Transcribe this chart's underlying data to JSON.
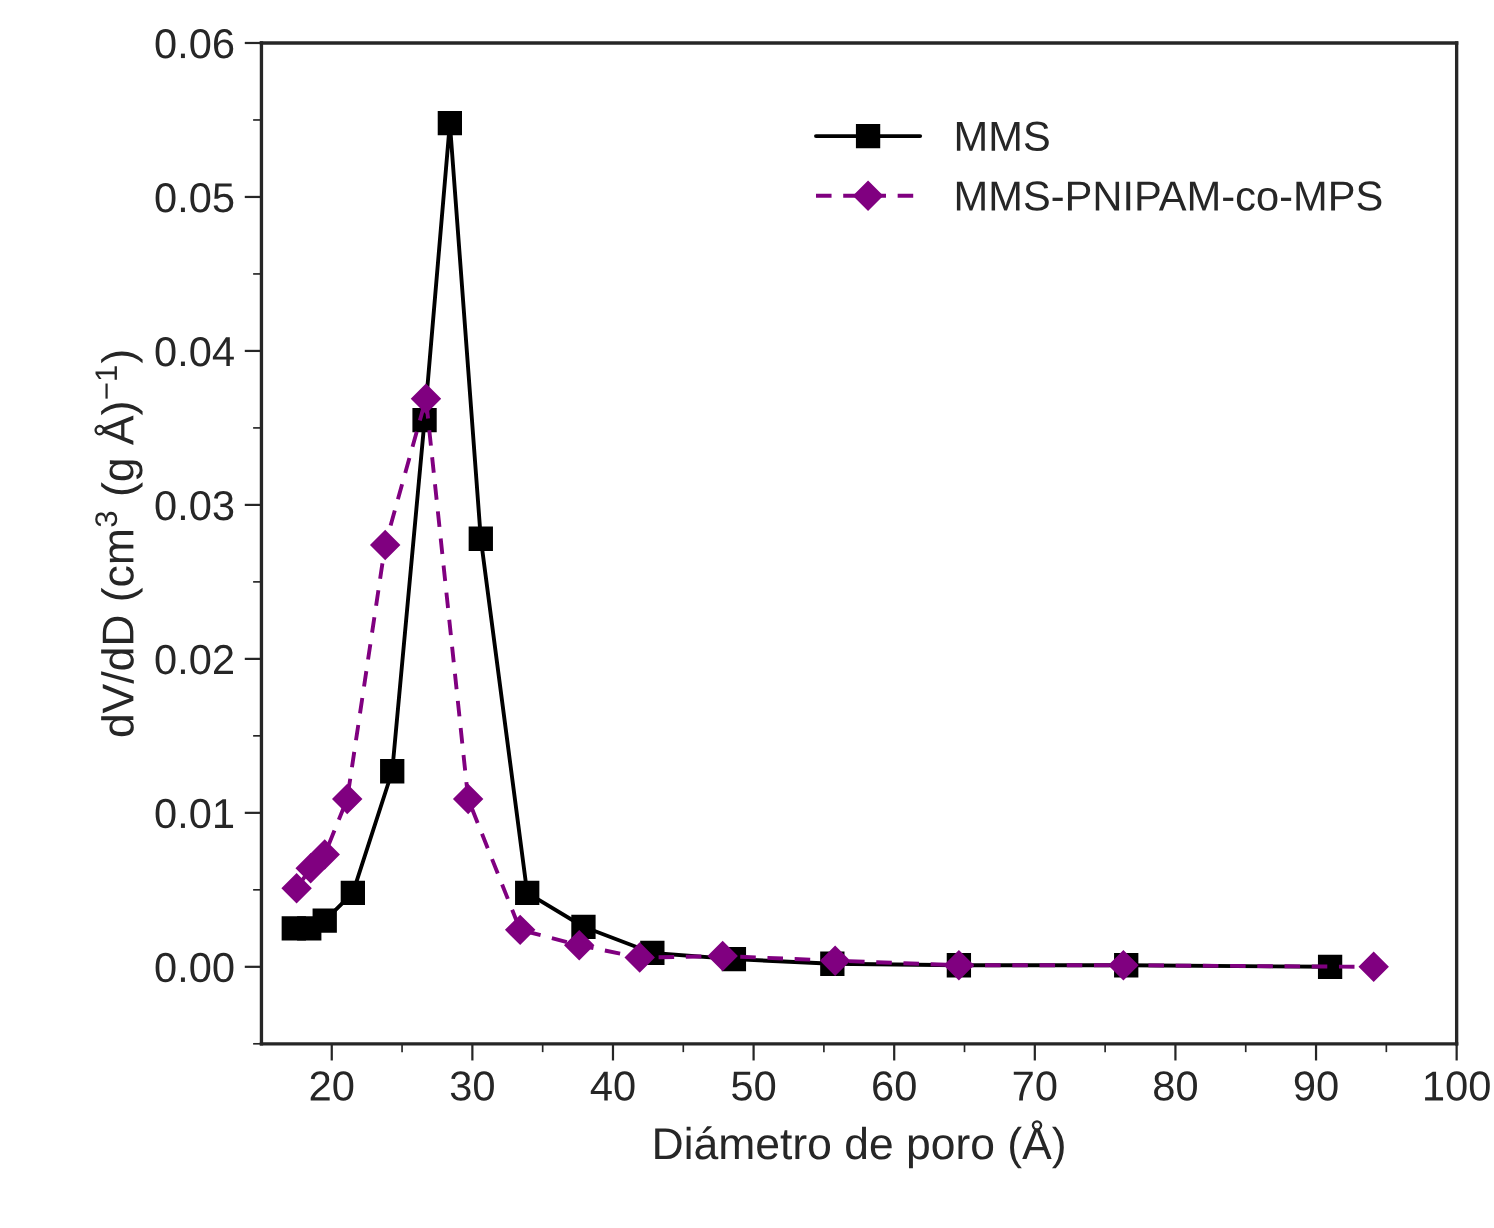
{
  "chart_data": {
    "type": "line",
    "xlabel": "Diámetro de poro (Å)",
    "ylabel": "dV/dD (cm$^{3}$ (g Å)$^{−1}$)",
    "xlim": [
      15,
      100
    ],
    "ylim": [
      -0.005,
      0.06
    ],
    "xticks": [
      20,
      {
        "value": 25,
        "label": null
      },
      30,
      {
        "value": 35,
        "label": null
      },
      40,
      {
        "value": 45,
        "label": null
      },
      50,
      {
        "value": 55,
        "label": null
      },
      60,
      {
        "value": 65,
        "label": null
      },
      70,
      {
        "value": 75,
        "label": null
      },
      80,
      {
        "value": 85,
        "label": null
      },
      90,
      {
        "value": 95,
        "label": null
      },
      100
    ],
    "yticks": [
      {
        "value": -0.005,
        "label": null
      },
      {
        "value": 0,
        "label": "0.00"
      },
      {
        "value": 0.005,
        "label": null
      },
      {
        "value": 0.01,
        "label": "0.01"
      },
      {
        "value": 0.015,
        "label": null
      },
      {
        "value": 0.02,
        "label": "0.02"
      },
      {
        "value": 0.025,
        "label": null
      },
      {
        "value": 0.03,
        "label": "0.03"
      },
      {
        "value": 0.035,
        "label": null
      },
      {
        "value": 0.04,
        "label": "0.04"
      },
      {
        "value": 0.045,
        "label": null
      },
      {
        "value": 0.05,
        "label": "0.05"
      },
      {
        "value": 0.055,
        "label": null
      },
      {
        "value": 0.06,
        "label": "0.06"
      }
    ],
    "grid": false,
    "legend": "top right",
    "series": [
      {
        "name": "MMS",
        "color": "#000000",
        "marker": "square",
        "line_style": "solid",
        "x": [
          17.3,
          18.4,
          19.5,
          21.5,
          24.3,
          26.6,
          28.4,
          30.6,
          33.9,
          37.9,
          42.8,
          48.6,
          55.6,
          64.6,
          76.5,
          91.0
        ],
        "values": [
          0.0025,
          0.0025,
          0.003,
          0.0048,
          0.0127,
          0.0355,
          0.0548,
          0.0278,
          0.0048,
          0.0026,
          0.0009,
          0.0005,
          0.0002,
          0.0001,
          0.0001,
          0.0
        ]
      },
      {
        "name": "MMS-PNIPAM-co-MPS",
        "color": "#800080",
        "marker": "diamond",
        "line_style": "dashed",
        "x": [
          17.5,
          18.5,
          19.5,
          21.1,
          23.8,
          26.7,
          29.7,
          33.4,
          37.6,
          41.9,
          47.8,
          55.8,
          64.6,
          76.3,
          94.1
        ],
        "values": [
          0.0051,
          0.0064,
          0.0073,
          0.0109,
          0.0274,
          0.0369,
          0.0109,
          0.0024,
          0.0014,
          0.0006,
          0.0007,
          0.0004,
          0.0001,
          0.0001,
          0.0
        ]
      }
    ]
  }
}
